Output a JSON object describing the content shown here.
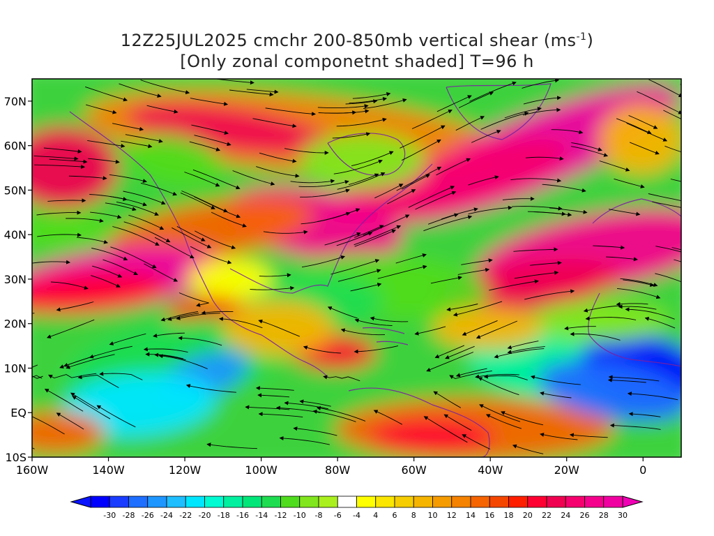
{
  "title": {
    "line1_main": "12Z25JUL2025 cmchr 200-850mb vertical shear (ms",
    "line1_sup": "-1",
    "line1_end": ")",
    "line2": "[Only zonal componetnt shaded] T=96 h"
  },
  "map": {
    "lon_labels": [
      "160W",
      "140W",
      "120W",
      "100W",
      "80W",
      "60W",
      "40W",
      "20W",
      "0"
    ],
    "lat_labels": [
      "70N",
      "60N",
      "50N",
      "40N",
      "30N",
      "20N",
      "10N",
      "EQ",
      "10S"
    ],
    "frame_color": "#000000",
    "streamline_color": "#000000",
    "coastline_color": "#7a1fa2"
  },
  "colorbar": {
    "labels": [
      "-30",
      "-28",
      "-26",
      "-24",
      "-22",
      "-20",
      "-18",
      "-16",
      "-14",
      "-12",
      "-10",
      "-8",
      "-6",
      "-4",
      "4",
      "6",
      "8",
      "10",
      "12",
      "14",
      "16",
      "18",
      "20",
      "22",
      "24",
      "26",
      "28",
      "30"
    ],
    "colors": [
      "#0000ff",
      "#1a3cff",
      "#1e6eff",
      "#1e96ff",
      "#1ebeff",
      "#00e6ff",
      "#00fad2",
      "#00f0a0",
      "#00e678",
      "#1edc50",
      "#50dc1e",
      "#82e61e",
      "#aaf01e",
      "#ffffff",
      "#ffff00",
      "#fae600",
      "#f5cd00",
      "#f5b400",
      "#f59b00",
      "#f58200",
      "#f56400",
      "#f54600",
      "#ff1e00",
      "#ff0032",
      "#f00050",
      "#f5006e",
      "#f5008c",
      "#f000a0"
    ],
    "end_low_color": "#0a14ff",
    "end_high_color": "#f000b4"
  }
}
